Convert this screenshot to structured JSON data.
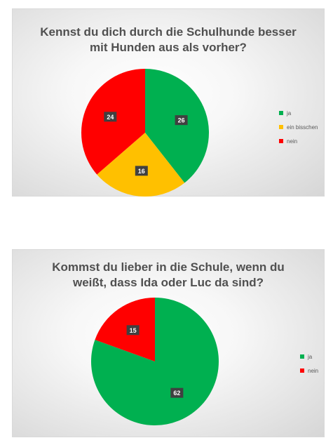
{
  "chart_data": [
    {
      "type": "pie",
      "title_lines": [
        "Kennst du dich durch die Schulhunde besser",
        "mit Hunden aus als vorher?"
      ],
      "categories": [
        "ja",
        "ein bisschen",
        "nein"
      ],
      "values": [
        26,
        16,
        24
      ],
      "colors": [
        "#00b050",
        "#ffc000",
        "#ff0000"
      ],
      "legend_position": "right"
    },
    {
      "type": "pie",
      "title_lines": [
        "Kommst du lieber in die Schule, wenn du",
        "weißt, dass Ida oder Luc da sind?"
      ],
      "categories": [
        "ja",
        "nein"
      ],
      "values": [
        62,
        15
      ],
      "colors": [
        "#00b050",
        "#ff0000"
      ],
      "legend_position": "right"
    }
  ]
}
